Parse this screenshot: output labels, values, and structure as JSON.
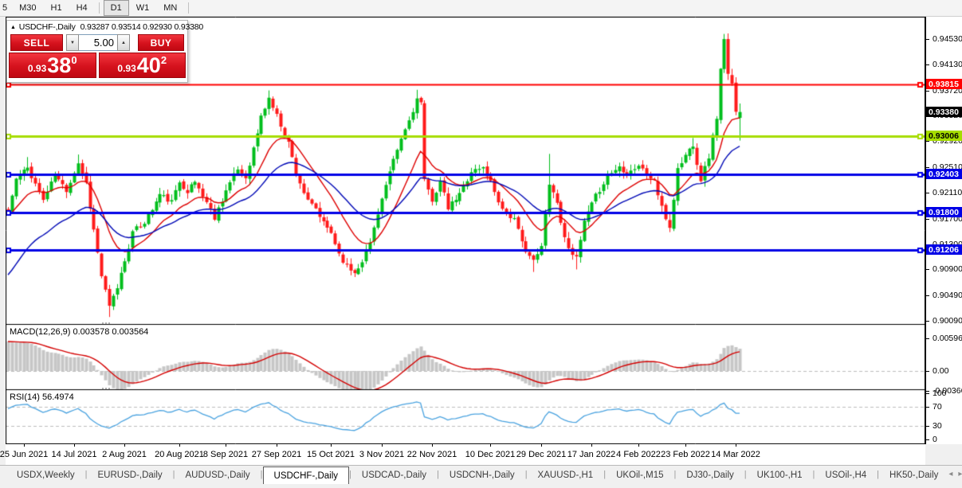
{
  "toolbar": {
    "timeframes": [
      "5",
      "M30",
      "H1",
      "H4",
      "D1",
      "W1",
      "MN"
    ],
    "active": "D1",
    "dividers_after": [
      "H4",
      "MN"
    ]
  },
  "trade_panel": {
    "collapse_icon": "▲",
    "symbol": "USDCHF-,Daily",
    "ohlc_text": "0.93287 0.93514 0.92930 0.93380",
    "sell_label": "SELL",
    "buy_label": "BUY",
    "volume": "5.00",
    "spin_down_icon": "▼",
    "spin_up_icon": "▲",
    "bid": {
      "prefix": "0.93",
      "big": "38",
      "sup": "0"
    },
    "ask": {
      "prefix": "0.93",
      "big": "40",
      "sup": "2"
    }
  },
  "indicators": {
    "macd": {
      "label": "MACD(12,26,9)",
      "values_text": "0.003578 0.003564",
      "axis_labels": [
        "0.005963",
        "0.00",
        "-0.003664"
      ],
      "axis_values": [
        0.005963,
        0,
        -0.003664
      ]
    },
    "rsi": {
      "label": "RSI(14)",
      "value_text": "56.4974",
      "axis_labels": [
        "100",
        "70",
        "30",
        "0"
      ],
      "axis_values": [
        100,
        70,
        30,
        0
      ],
      "levels": [
        70,
        30
      ]
    }
  },
  "tab_bar": {
    "tabs": [
      "USDX,Weekly",
      "EURUSD-,Daily",
      "AUDUSD-,Daily",
      "USDCHF-,Daily",
      "USDCAD-,Daily",
      "USDCNH-,Daily",
      "XAUUSD-,H1",
      "UKOil-,M15",
      "DJ30-,Daily",
      "UK100-,H1",
      "USOil-,H4",
      "HK50-,Daily"
    ],
    "active": "USDCHF-,Daily",
    "scroll_left_icon": "◂",
    "scroll_right_icon": "▸"
  },
  "chart_data": {
    "type": "candlestick",
    "symbol": "USDCHF-",
    "timeframe": "Daily",
    "current_bar": {
      "open": 0.93287,
      "high": 0.93514,
      "low": 0.9293,
      "close": 0.9338
    },
    "bid": 0.9338,
    "ask": 0.93402,
    "ylim": [
      0.8999,
      0.9463
    ],
    "y_ticks": [
      "0.94530",
      "0.94130",
      "0.93720",
      "0.93320",
      "0.92920",
      "0.92510",
      "0.92110",
      "0.91700",
      "0.91300",
      "0.90900",
      "0.90490",
      "0.90090"
    ],
    "x_labels": [
      {
        "label": "25 Jun 2021",
        "i": 4
      },
      {
        "label": "14 Jul 2021",
        "i": 17
      },
      {
        "label": "2 Aug 2021",
        "i": 30
      },
      {
        "label": "20 Aug 2021",
        "i": 44
      },
      {
        "label": "8 Sep 2021",
        "i": 56
      },
      {
        "label": "27 Sep 2021",
        "i": 69
      },
      {
        "label": "15 Oct 2021",
        "i": 83
      },
      {
        "label": "3 Nov 2021",
        "i": 96
      },
      {
        "label": "22 Nov 2021",
        "i": 109
      },
      {
        "label": "10 Dec 2021",
        "i": 124
      },
      {
        "label": "29 Dec 2021",
        "i": 137
      },
      {
        "label": "17 Jan 2022",
        "i": 150
      },
      {
        "label": "4 Feb 2022",
        "i": 162
      },
      {
        "label": "23 Feb 2022",
        "i": 174
      },
      {
        "label": "14 Mar 2022",
        "i": 187
      }
    ],
    "levels": [
      {
        "price": "0.93815",
        "value": 0.93815,
        "color": "#FF0000",
        "text_color": "#FFFFFF",
        "width": 2
      },
      {
        "price": "0.93006",
        "value": 0.93006,
        "color": "#A6DD00",
        "text_color": "#000000",
        "width": 3
      },
      {
        "price": "0.92403",
        "value": 0.92403,
        "color": "#0000E6",
        "text_color": "#FFFFFF",
        "width": 3
      },
      {
        "price": "0.91800",
        "value": 0.918,
        "color": "#0000E6",
        "text_color": "#FFFFFF",
        "width": 3
      },
      {
        "price": "0.91206",
        "value": 0.91206,
        "color": "#0000E6",
        "text_color": "#FFFFFF",
        "width": 3
      }
    ],
    "current_price_label": {
      "price": "0.93380",
      "value": 0.9338,
      "color": "#000000",
      "text_color": "#FFFFFF"
    },
    "bar_count": 189,
    "price_path": [
      [
        0,
        0.918
      ],
      [
        2,
        0.9232
      ],
      [
        5,
        0.925
      ],
      [
        9,
        0.92
      ],
      [
        12,
        0.9238
      ],
      [
        15,
        0.9215
      ],
      [
        18,
        0.9258
      ],
      [
        20,
        0.9226
      ],
      [
        22,
        0.9152
      ],
      [
        24,
        0.908
      ],
      [
        26,
        0.903
      ],
      [
        28,
        0.9062
      ],
      [
        30,
        0.9105
      ],
      [
        32,
        0.9148
      ],
      [
        35,
        0.9165
      ],
      [
        37,
        0.9185
      ],
      [
        39,
        0.9208
      ],
      [
        42,
        0.9196
      ],
      [
        44,
        0.9228
      ],
      [
        46,
        0.9214
      ],
      [
        48,
        0.9228
      ],
      [
        51,
        0.9196
      ],
      [
        53,
        0.9172
      ],
      [
        56,
        0.9215
      ],
      [
        59,
        0.9248
      ],
      [
        61,
        0.9235
      ],
      [
        63,
        0.928
      ],
      [
        65,
        0.933
      ],
      [
        67,
        0.936
      ],
      [
        69,
        0.9332
      ],
      [
        72,
        0.929
      ],
      [
        74,
        0.9242
      ],
      [
        77,
        0.9196
      ],
      [
        79,
        0.9185
      ],
      [
        81,
        0.9162
      ],
      [
        83,
        0.9148
      ],
      [
        85,
        0.9115
      ],
      [
        87,
        0.9095
      ],
      [
        89,
        0.9085
      ],
      [
        91,
        0.9105
      ],
      [
        93,
        0.9132
      ],
      [
        95,
        0.918
      ],
      [
        97,
        0.9222
      ],
      [
        99,
        0.926
      ],
      [
        101,
        0.9295
      ],
      [
        103,
        0.9325
      ],
      [
        105,
        0.9358
      ],
      [
        106,
        0.9352
      ],
      [
        107,
        0.9228
      ],
      [
        109,
        0.92
      ],
      [
        111,
        0.9228
      ],
      [
        113,
        0.9186
      ],
      [
        116,
        0.9208
      ],
      [
        119,
        0.9245
      ],
      [
        122,
        0.925
      ],
      [
        124,
        0.9228
      ],
      [
        127,
        0.9185
      ],
      [
        130,
        0.9168
      ],
      [
        132,
        0.9132
      ],
      [
        135,
        0.9102
      ],
      [
        137,
        0.9125
      ],
      [
        139,
        0.9228
      ],
      [
        141,
        0.9195
      ],
      [
        143,
        0.9138
      ],
      [
        146,
        0.9106
      ],
      [
        148,
        0.9165
      ],
      [
        151,
        0.9205
      ],
      [
        154,
        0.9238
      ],
      [
        157,
        0.9252
      ],
      [
        159,
        0.9242
      ],
      [
        162,
        0.9254
      ],
      [
        164,
        0.924
      ],
      [
        166,
        0.923
      ],
      [
        168,
        0.9186
      ],
      [
        170,
        0.9156
      ],
      [
        172,
        0.9248
      ],
      [
        174,
        0.927
      ],
      [
        176,
        0.9288
      ],
      [
        177,
        0.9258
      ],
      [
        178,
        0.9232
      ],
      [
        180,
        0.9268
      ],
      [
        182,
        0.933
      ],
      [
        183,
        0.9405
      ],
      [
        184,
        0.945
      ],
      [
        185,
        0.9396
      ],
      [
        186,
        0.938
      ],
      [
        187,
        0.9342
      ],
      [
        188,
        0.9338
      ]
    ],
    "extremes": [
      {
        "i": 5,
        "high": 0.9267
      },
      {
        "i": 18,
        "high": 0.9271
      },
      {
        "i": 26,
        "low": 0.9015
      },
      {
        "i": 67,
        "high": 0.9372
      },
      {
        "i": 89,
        "low": 0.9078
      },
      {
        "i": 105,
        "high": 0.9373
      },
      {
        "i": 135,
        "low": 0.9086
      },
      {
        "i": 139,
        "high": 0.9272
      },
      {
        "i": 146,
        "low": 0.909
      },
      {
        "i": 176,
        "high": 0.9297
      },
      {
        "i": 184,
        "high": 0.9461
      }
    ],
    "colors": {
      "up": "#00BE1C",
      "down": "#FF1A1A",
      "ma_fast": "#DE0000",
      "ma_slow": "#0008B6",
      "macd_bar": "#C6C6C6",
      "macd_signal": "#D40000",
      "rsi_line": "#4AA3E0",
      "level_dash": "#BDBDBD"
    },
    "ma_periods": {
      "fast": 14,
      "slow": 32
    }
  }
}
